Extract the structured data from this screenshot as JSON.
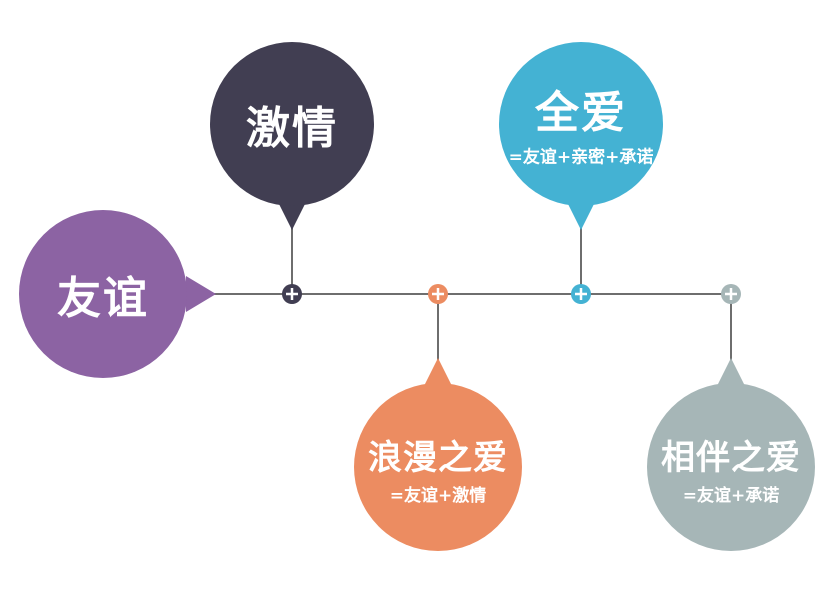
{
  "colors": {
    "friendship": "#8c63a3",
    "passion": "#413e52",
    "romantic": "#ec8c61",
    "complete": "#44b2d3",
    "companionate": "#a6b6b7",
    "line": "#6e6e6e"
  },
  "nodes": {
    "friendship": {
      "title": "友谊"
    },
    "passion": {
      "title": "激情"
    },
    "complete": {
      "title": "全爱",
      "formula": "=友谊+亲密+承诺"
    },
    "romantic": {
      "title": "浪漫之爱",
      "formula": "=友谊+激情"
    },
    "companionate": {
      "title": "相伴之爱",
      "formula": "=友谊+承诺"
    }
  }
}
